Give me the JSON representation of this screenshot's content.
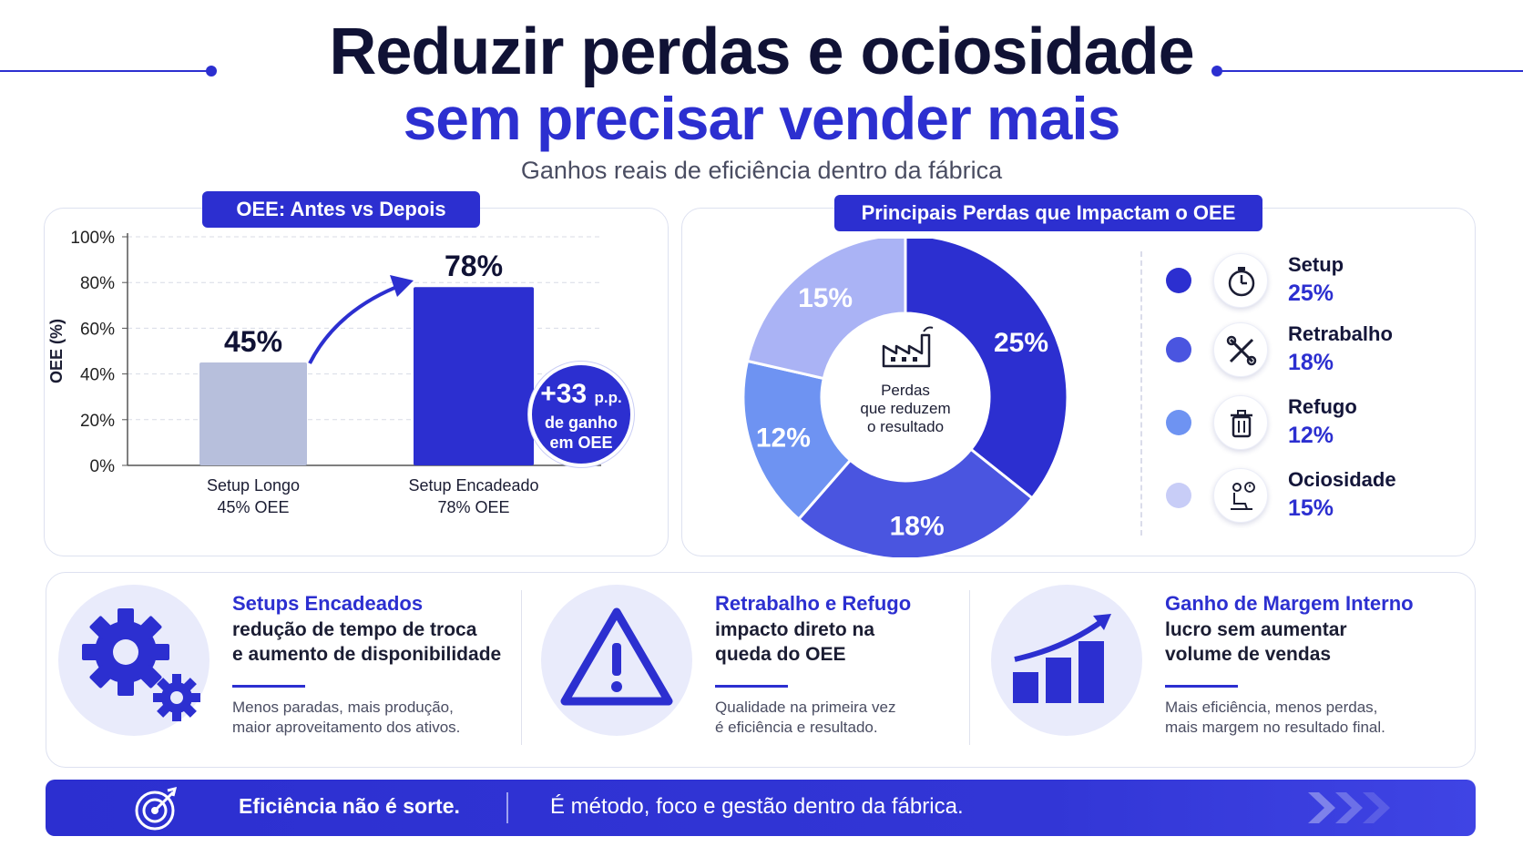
{
  "header": {
    "title_line1": "Reduzir perdas e ociosidade",
    "title_line2": "sem precisar vender mais",
    "subtitle": "Ganhos reais de eficiência dentro da fábrica"
  },
  "colors": {
    "primary": "#2c2fd0",
    "before_bar": "#b7bfdc",
    "after_bar": "#2c2fd0",
    "setup": "#2c2fd0",
    "retrabalho": "#4a55e0",
    "refugo": "#6e93f2",
    "ociosidade": "#aab3f5"
  },
  "bar_panel": {
    "tag": "OEE: Antes vs Depois",
    "badge_value": "+33",
    "badge_unit": "p.p.",
    "badge_line2": "de ganho",
    "badge_line3": "em OEE"
  },
  "donut_panel": {
    "tag": "Principais Perdas que Impactam o OEE",
    "center_lines": [
      "Perdas",
      "que reduzem",
      "o resultado"
    ]
  },
  "chart_data": [
    {
      "type": "bar",
      "title": "OEE: Antes vs Depois",
      "ylabel": "OEE (%)",
      "xlabel": "",
      "ylim": [
        0,
        100
      ],
      "yticks": [
        0,
        20,
        40,
        60,
        80,
        100
      ],
      "ytick_labels": [
        "0%",
        "20%",
        "40%",
        "60%",
        "80%",
        "100%"
      ],
      "grid": true,
      "categories": [
        "Setup Longo",
        "Setup Encadeado"
      ],
      "category_sublabels": [
        "45% OEE",
        "78% OEE"
      ],
      "values": [
        45,
        78
      ],
      "value_labels": [
        "45%",
        "78%"
      ]
    },
    {
      "type": "pie",
      "title": "Principais Perdas que Impactam o OEE",
      "donut": true,
      "labels": [
        "Setup",
        "Retrabalho",
        "Refugo",
        "Ociosidade"
      ],
      "values": [
        25,
        18,
        12,
        15
      ],
      "value_labels": [
        "25%",
        "18%",
        "12%",
        "15%"
      ],
      "legend": "right"
    }
  ],
  "legend": [
    {
      "name": "Setup",
      "pct": "25%",
      "icon": "stopwatch-icon"
    },
    {
      "name": "Retrabalho",
      "pct": "18%",
      "icon": "tools-icon"
    },
    {
      "name": "Refugo",
      "pct": "12%",
      "icon": "trash-icon"
    },
    {
      "name": "Ociosidade",
      "pct": "15%",
      "icon": "idle-person-icon"
    }
  ],
  "cards": [
    {
      "title": "Setups Encadeados",
      "body1": "redução de tempo de troca",
      "body2": "e aumento de disponibilidade",
      "note1": "Menos paradas, mais produção,",
      "note2": "maior aproveitamento dos ativos.",
      "icon": "gears-icon"
    },
    {
      "title": "Retrabalho e Refugo",
      "body1": "impacto direto na",
      "body2": "queda do OEE",
      "note1": "Qualidade na primeira vez",
      "note2": "é eficiência e resultado.",
      "icon": "warning-icon"
    },
    {
      "title": "Ganho de Margem Interno",
      "body1": "lucro sem aumentar",
      "body2": "volume de vendas",
      "note1": "Mais eficiência, menos perdas,",
      "note2": "mais margem no resultado final.",
      "icon": "growth-chart-icon"
    }
  ],
  "footer": {
    "left": "Eficiência não é sorte.",
    "right": "É método, foco e gestão dentro da fábrica.",
    "icon": "target-icon"
  }
}
